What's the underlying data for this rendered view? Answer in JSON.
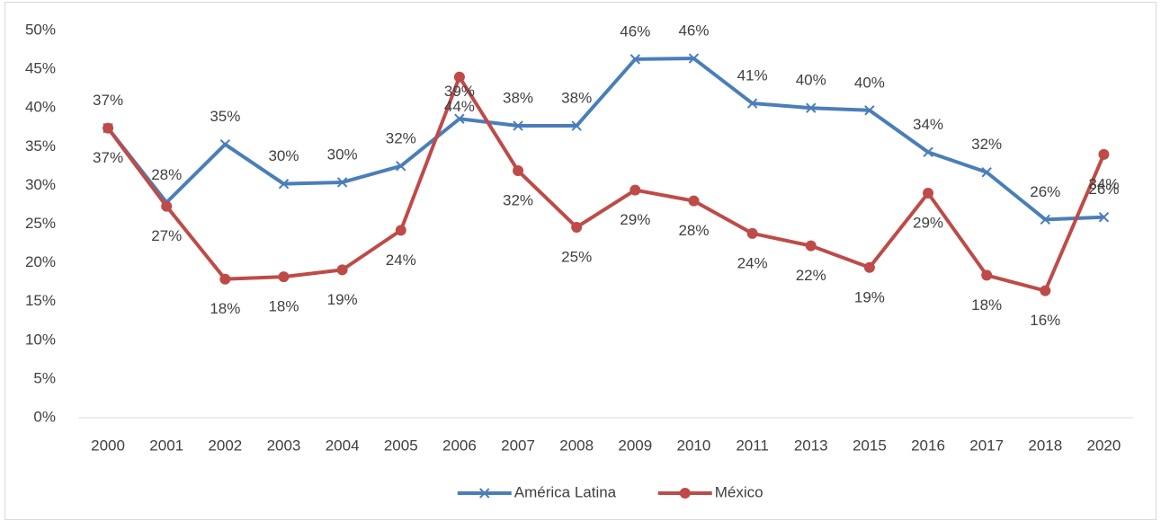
{
  "chart_data": {
    "type": "line",
    "categories": [
      "2000",
      "2001",
      "2002",
      "2003",
      "2004",
      "2005",
      "2006",
      "2007",
      "2008",
      "2009",
      "2010",
      "2011",
      "2013",
      "2015",
      "2016",
      "2017",
      "2018",
      "2020"
    ],
    "series": [
      {
        "name": "América Latina",
        "color": "#4a7ebb",
        "marker": "x",
        "values": [
          37.4,
          27.8,
          35.3,
          30.2,
          30.4,
          32.5,
          38.6,
          37.7,
          37.7,
          46.3,
          46.4,
          40.6,
          40.0,
          39.7,
          34.3,
          31.7,
          25.6,
          25.9
        ],
        "value_labels": [
          "37%",
          "28%",
          "35%",
          "30%",
          "30%",
          "32%",
          "39%",
          "38%",
          "38%",
          "46%",
          "46%",
          "41%",
          "40%",
          "40%",
          "34%",
          "32%",
          "26%",
          "26%"
        ]
      },
      {
        "name": "México",
        "color": "#be4b48",
        "marker": "circle",
        "values": [
          37.4,
          27.3,
          17.9,
          18.2,
          19.1,
          24.2,
          44.0,
          31.9,
          24.6,
          29.4,
          28.0,
          23.8,
          22.2,
          19.4,
          29.0,
          18.4,
          16.4,
          34.0
        ],
        "value_labels": [
          "37%",
          "27%",
          "18%",
          "18%",
          "19%",
          "24%",
          "44%",
          "32%",
          "25%",
          "29%",
          "28%",
          "24%",
          "22%",
          "19%",
          "29%",
          "18%",
          "16%",
          "34%"
        ]
      }
    ],
    "ylim": [
      0,
      50
    ],
    "yticks": [
      {
        "value": 0,
        "label": "0%"
      },
      {
        "value": 5,
        "label": "5%"
      },
      {
        "value": 10,
        "label": "10%"
      },
      {
        "value": 15,
        "label": "15%"
      },
      {
        "value": 20,
        "label": "20%"
      },
      {
        "value": 25,
        "label": "25%"
      },
      {
        "value": 30,
        "label": "30%"
      },
      {
        "value": 35,
        "label": "35%"
      },
      {
        "value": 40,
        "label": "40%"
      },
      {
        "value": 45,
        "label": "45%"
      },
      {
        "value": 50,
        "label": "50%"
      }
    ],
    "grid": false,
    "legend": "bottom"
  }
}
